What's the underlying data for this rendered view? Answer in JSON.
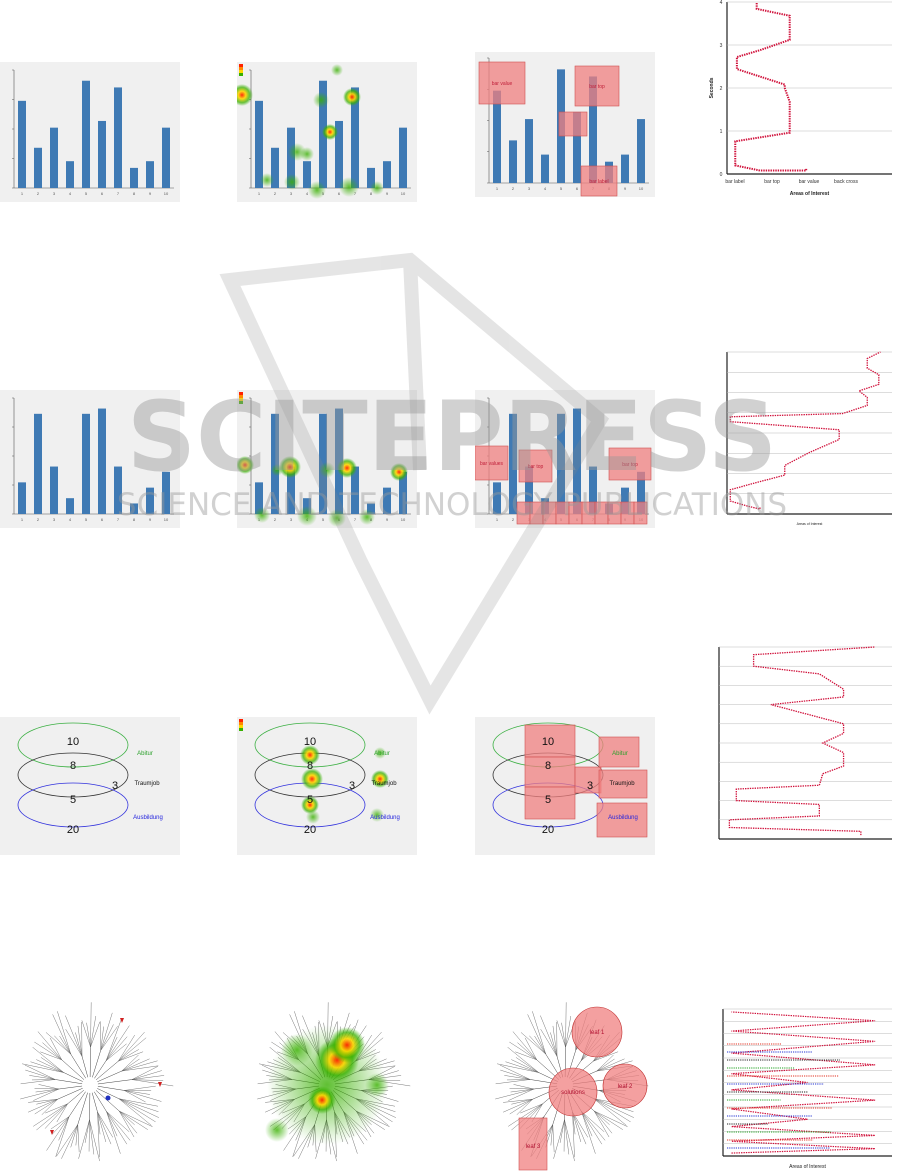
{
  "bars_row1": {
    "values": [
      13,
      6,
      9,
      4,
      16,
      10,
      15,
      3,
      4,
      9
    ],
    "ticks": [
      "1",
      "2",
      "3",
      "4",
      "5",
      "6",
      "7",
      "8",
      "9",
      "10"
    ]
  },
  "bars_row2": {
    "values": [
      6,
      19,
      9,
      3,
      19,
      20,
      9,
      2,
      5,
      8
    ],
    "ticks": [
      "1",
      "2",
      "3",
      "4",
      "5",
      "6",
      "7",
      "8",
      "9",
      "10"
    ]
  },
  "venn": {
    "numbers": [
      "10",
      "8",
      "3",
      "5",
      "20"
    ],
    "labels": [
      {
        "text": "Abitur",
        "color": "#2aa02a"
      },
      {
        "text": "Traumjob",
        "color": "#111111"
      },
      {
        "text": "Ausbildung",
        "color": "#2222dd"
      }
    ]
  },
  "aoi_row1": {
    "labels": [
      "bar value",
      "bar top",
      "bar label"
    ]
  },
  "aoi_row2": {
    "labels": [
      "bar values",
      "bar top",
      "bar top"
    ]
  },
  "aoi_row3": {
    "labels": [
      "Abitur",
      "Traumjob",
      "Ausbildung"
    ]
  },
  "aoi_row4": {
    "labels": [
      "leaf 1",
      "solutions",
      "leaf 2",
      "leaf 3"
    ]
  },
  "scanpath_top": {
    "y_label": "Seconds",
    "x_label": "Areas of Interest",
    "x_ticks": [
      "bar label",
      "bar top",
      "bar value",
      "back cross"
    ],
    "y_ticks": [
      "0",
      "1",
      "2",
      "3",
      "4"
    ]
  },
  "scanpath_bottom": {
    "x_label": "Areas of Interest"
  },
  "watermark": {
    "title": "SCITEPRESS",
    "subtitle": "SCIENCE AND TECHNOLOGY PUBLICATIONS"
  },
  "colors": {
    "bar": "#3f7ab4",
    "aoi": "#f08080",
    "scanpath": "#d0103a"
  }
}
